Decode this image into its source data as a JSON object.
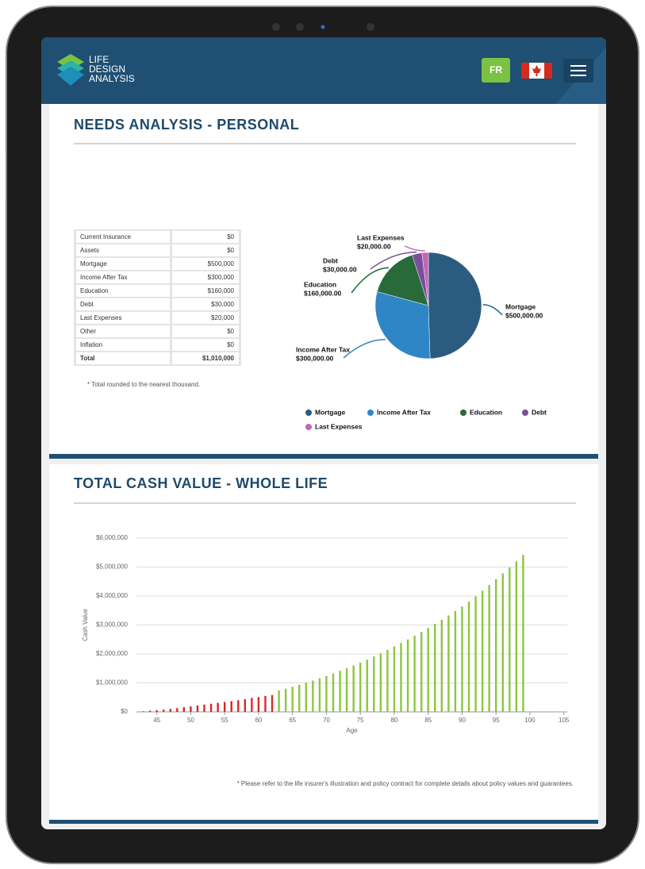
{
  "header": {
    "logo": [
      "LIFE",
      "DESIGN",
      "ANALYSIS"
    ],
    "language_button": "FR"
  },
  "needs": {
    "title": "NEEDS ANALYSIS - PERSONAL",
    "table": {
      "rows": [
        [
          "Current Insurance",
          "$0"
        ],
        [
          "Assets",
          "$0"
        ],
        [
          "Mortgage",
          "$500,000"
        ],
        [
          "Income After Tax",
          "$300,000"
        ],
        [
          "Education",
          "$160,000"
        ],
        [
          "Debt",
          "$30,000"
        ],
        [
          "Last Expenses",
          "$20,000"
        ],
        [
          "Other",
          "$0"
        ],
        [
          "Inflation",
          "$0"
        ],
        [
          "Total",
          "$1,010,000"
        ]
      ]
    },
    "note": "* Total rounded to the nearest thousand."
  },
  "cash": {
    "title": "TOTAL CASH VALUE - WHOLE LIFE",
    "note": "* Please refer to the life insurer's illustration and policy contract for complete details about policy values and guarantees."
  },
  "chart_data": [
    {
      "type": "pie",
      "categories": [
        "Mortgage",
        "Income After Tax",
        "Education",
        "Debt",
        "Last Expenses"
      ],
      "values": [
        500000,
        300000,
        160000,
        30000,
        20000
      ],
      "value_labels": [
        "$500,000.00",
        "$300,000.00",
        "$160,000.00",
        "$30,000.00",
        "$20,000.00"
      ],
      "colors": [
        "#2b5c80",
        "#2f86c6",
        "#286a3a",
        "#7a4f9a",
        "#c466b4"
      ]
    },
    {
      "type": "bar",
      "x_label": "Age",
      "y_label": "Cash Value",
      "x": [
        43,
        44,
        45,
        46,
        47,
        48,
        49,
        50,
        51,
        52,
        53,
        54,
        55,
        56,
        57,
        58,
        59,
        60,
        61,
        62,
        63,
        64,
        65,
        66,
        67,
        68,
        69,
        70,
        71,
        72,
        73,
        74,
        75,
        76,
        77,
        78,
        79,
        80,
        81,
        82,
        83,
        84,
        85,
        86,
        87,
        88,
        89,
        90,
        91,
        92,
        93,
        94,
        95,
        96,
        97,
        98,
        99
      ],
      "series": [
        {
          "color": "#d42a2a",
          "values": [
            20000,
            40000,
            60000,
            80000,
            100000,
            130000,
            160000,
            190000,
            220000,
            250000,
            280000,
            310000,
            340000,
            370000,
            400000,
            440000,
            480000,
            510000,
            550000,
            580000,
            null,
            null,
            null,
            null,
            null,
            null,
            null,
            null,
            null,
            null,
            null,
            null,
            null,
            null,
            null,
            null,
            null,
            null,
            null,
            null,
            null,
            null,
            null,
            null,
            null,
            null,
            null,
            null,
            null,
            null,
            null,
            null,
            null,
            null,
            null,
            null,
            null
          ]
        },
        {
          "color": "#8cc63f",
          "values": [
            null,
            null,
            null,
            null,
            null,
            null,
            null,
            null,
            null,
            null,
            null,
            null,
            null,
            null,
            null,
            null,
            null,
            null,
            null,
            null,
            740000,
            800000,
            870000,
            940000,
            1010000,
            1080000,
            1160000,
            1240000,
            1330000,
            1420000,
            1510000,
            1600000,
            1700000,
            1800000,
            1910000,
            2020000,
            2140000,
            2260000,
            2380000,
            2500000,
            2630000,
            2760000,
            2900000,
            3040000,
            3180000,
            3330000,
            3480000,
            3640000,
            3810000,
            3990000,
            4180000,
            4380000,
            4580000,
            4780000,
            4980000,
            5200000,
            5420000
          ]
        }
      ],
      "xlim": [
        42,
        105.5
      ],
      "xticks": [
        45,
        50,
        55,
        60,
        65,
        70,
        75,
        80,
        85,
        90,
        95,
        100,
        105
      ],
      "ylim": [
        0,
        6000000
      ],
      "yticks": [
        {
          "value": 0,
          "label": "$0"
        },
        {
          "value": 1000000,
          "label": "$1,000,000"
        },
        {
          "value": 2000000,
          "label": "$2,000,000"
        },
        {
          "value": 3000000,
          "label": "$3,000,000"
        },
        {
          "value": 4000000,
          "label": "$4,000,000"
        },
        {
          "value": 5000000,
          "label": "$5,000,000"
        },
        {
          "value": 6000000,
          "label": "$6,000,000"
        }
      ],
      "grid": true
    }
  ]
}
